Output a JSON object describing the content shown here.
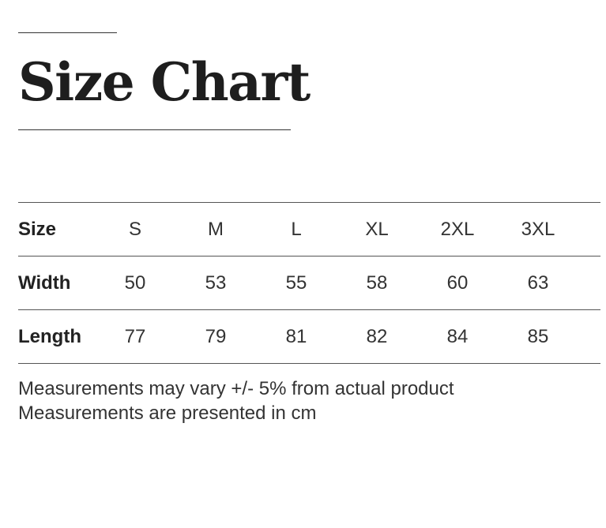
{
  "title": "Size Chart",
  "table": {
    "rows": [
      {
        "label": "Size",
        "cells": [
          "S",
          "M",
          "L",
          "XL",
          "2XL",
          "3XL"
        ]
      },
      {
        "label": "Width",
        "cells": [
          "50",
          "53",
          "55",
          "58",
          "60",
          "63"
        ]
      },
      {
        "label": "Length",
        "cells": [
          "77",
          "79",
          "81",
          "82",
          "84",
          "85"
        ]
      }
    ]
  },
  "notes": [
    "Measurements may vary +/- 5% from actual product",
    "Measurements are presented in cm"
  ]
}
